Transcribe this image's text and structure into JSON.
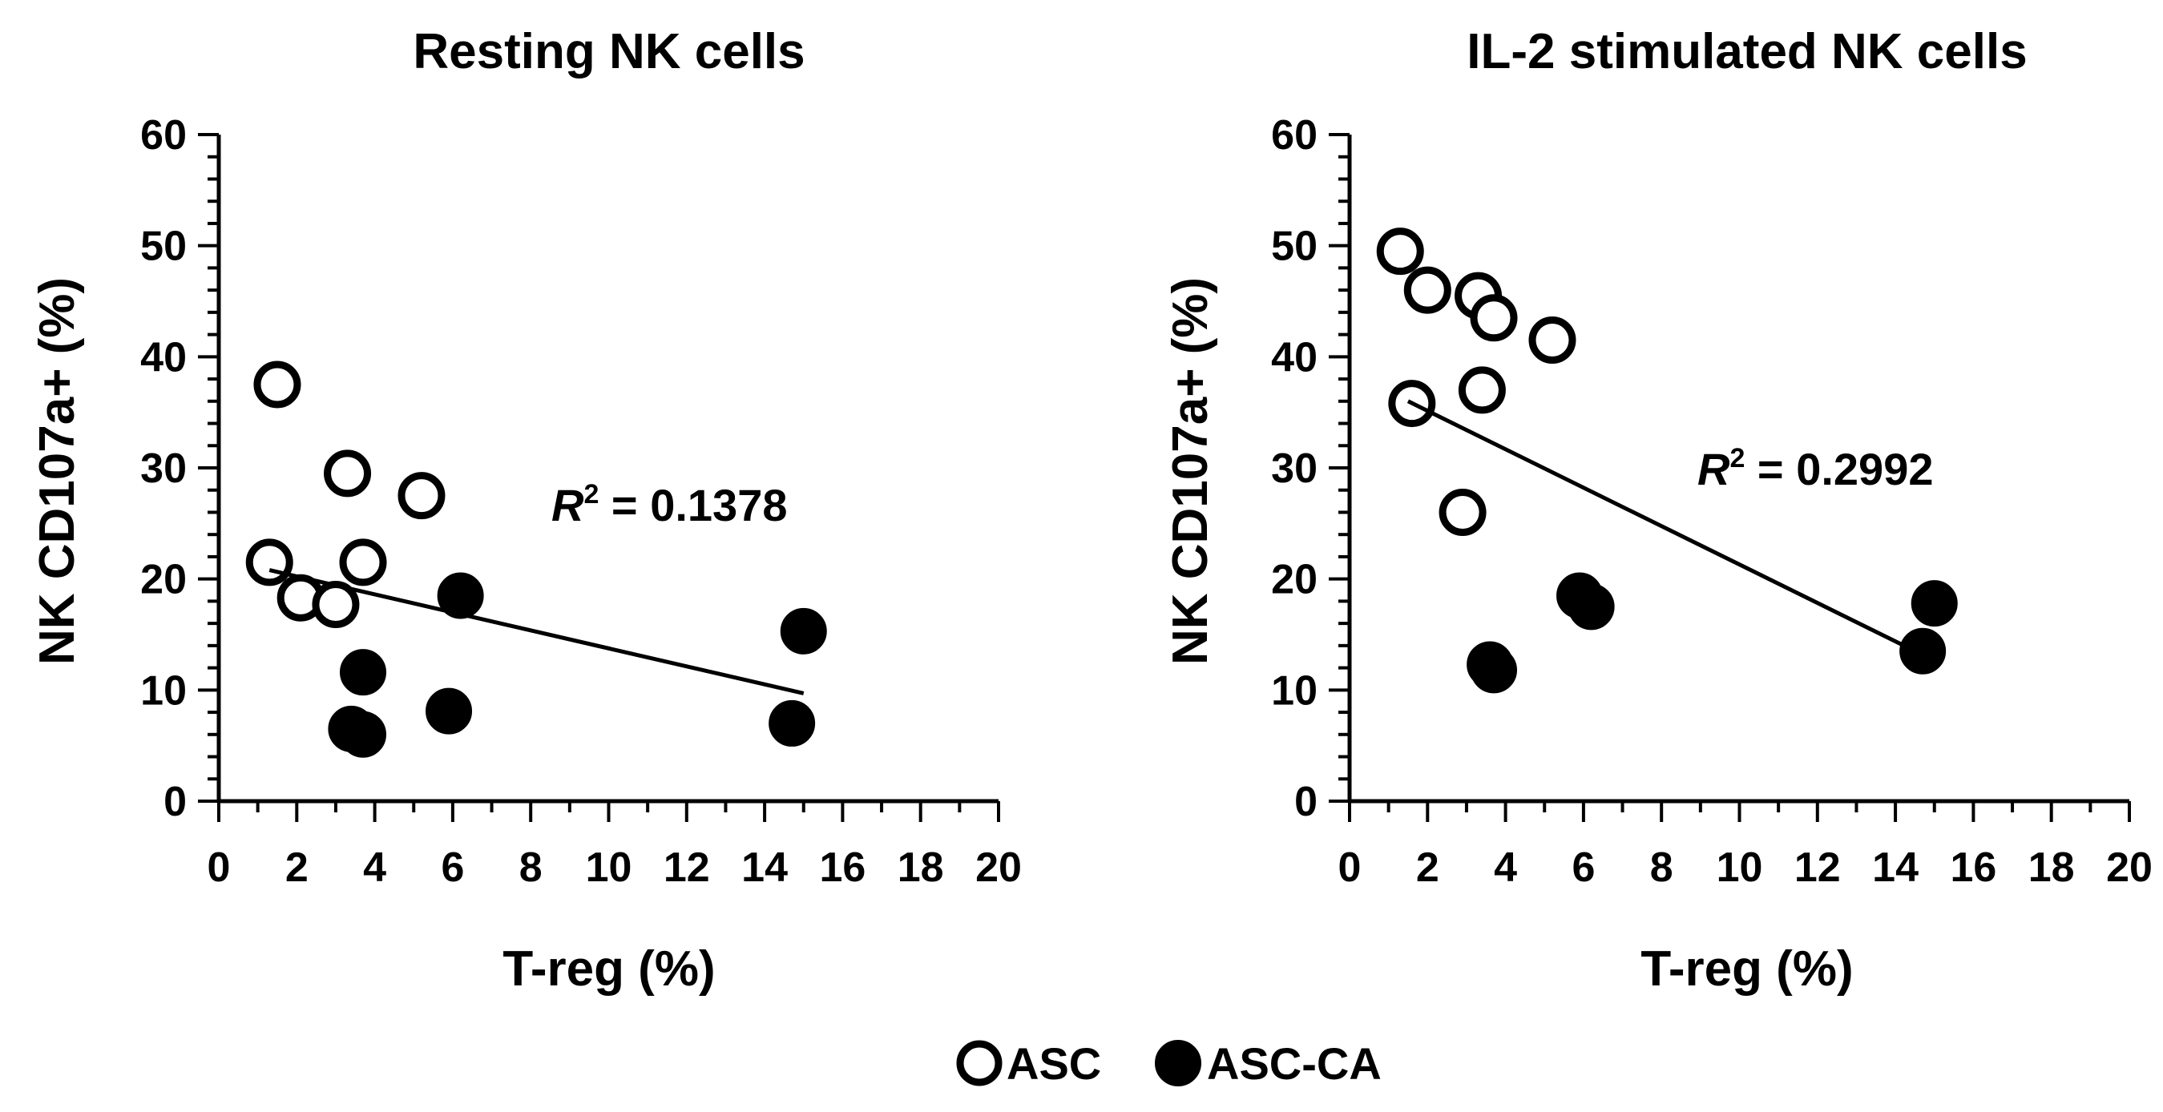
{
  "chart_data": [
    {
      "type": "scatter",
      "title": "Resting NK cells",
      "xlabel": "T-reg (%)",
      "ylabel": "NK CD107a+ (%)",
      "xlim": [
        0,
        20
      ],
      "ylim": [
        0,
        60
      ],
      "x_ticks": [
        "0",
        "2",
        "4",
        "6",
        "8",
        "10",
        "12",
        "14",
        "16",
        "18",
        "20"
      ],
      "y_ticks": [
        "0",
        "10",
        "20",
        "30",
        "40",
        "50",
        "60"
      ],
      "annotation": {
        "prefix": "R",
        "sup": "2",
        "text": " = 0.1378"
      },
      "trendline": {
        "x": [
          1.3,
          15.0
        ],
        "y": [
          20.8,
          9.7
        ]
      },
      "series": [
        {
          "name": "ASC",
          "style": "open",
          "points": [
            [
              1.5,
              37.5
            ],
            [
              3.3,
              29.5
            ],
            [
              5.2,
              27.5
            ],
            [
              1.3,
              21.5
            ],
            [
              3.7,
              21.5
            ],
            [
              2.1,
              18.3
            ],
            [
              3.0,
              17.7
            ]
          ]
        },
        {
          "name": "ASC-CA",
          "style": "filled",
          "points": [
            [
              6.2,
              18.5
            ],
            [
              15.0,
              15.3
            ],
            [
              3.7,
              11.6
            ],
            [
              5.9,
              8.1
            ],
            [
              14.7,
              7.0
            ],
            [
              3.4,
              6.5
            ],
            [
              3.7,
              6.0
            ]
          ]
        }
      ]
    },
    {
      "type": "scatter",
      "title": "IL-2 stimulated NK cells",
      "xlabel": "T-reg (%)",
      "ylabel": "NK CD107a+ (%)",
      "xlim": [
        0,
        20
      ],
      "ylim": [
        0,
        60
      ],
      "x_ticks": [
        "0",
        "2",
        "4",
        "6",
        "8",
        "10",
        "12",
        "14",
        "16",
        "18",
        "20"
      ],
      "y_ticks": [
        "0",
        "10",
        "20",
        "30",
        "40",
        "50",
        "60"
      ],
      "annotation": {
        "prefix": "R",
        "sup": "2",
        "text": " = 0.2992"
      },
      "trendline": {
        "x": [
          1.5,
          14.8
        ],
        "y": [
          36.0,
          13.0
        ]
      },
      "series": [
        {
          "name": "ASC",
          "style": "open",
          "points": [
            [
              1.3,
              49.5
            ],
            [
              2.0,
              46.0
            ],
            [
              3.3,
              45.5
            ],
            [
              3.7,
              43.5
            ],
            [
              5.2,
              41.5
            ],
            [
              3.4,
              37.0
            ],
            [
              1.6,
              35.8
            ],
            [
              2.9,
              26.0
            ]
          ]
        },
        {
          "name": "ASC-CA",
          "style": "filled",
          "points": [
            [
              5.9,
              18.5
            ],
            [
              6.2,
              17.5
            ],
            [
              15.0,
              17.8
            ],
            [
              14.7,
              13.5
            ],
            [
              3.6,
              12.3
            ],
            [
              3.7,
              11.8
            ]
          ]
        }
      ]
    }
  ],
  "legend": [
    {
      "label": "ASC",
      "style": "open"
    },
    {
      "label": "ASC-CA",
      "style": "filled"
    }
  ]
}
